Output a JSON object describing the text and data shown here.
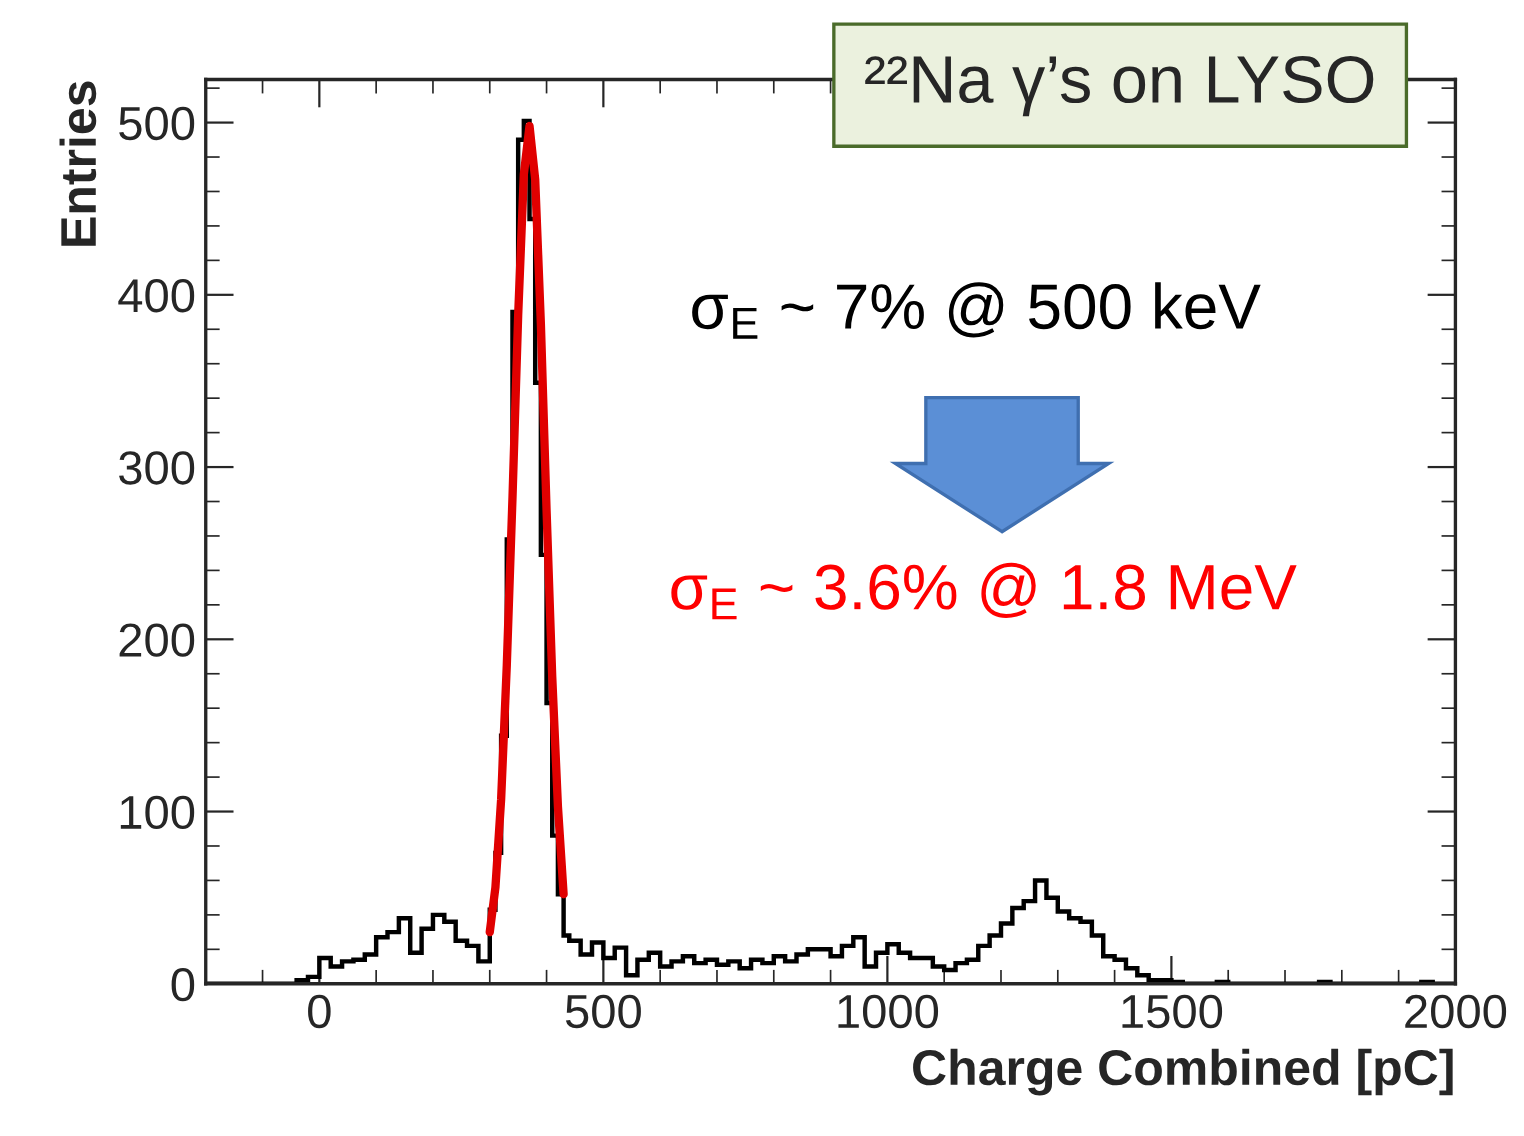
{
  "chart_data": {
    "type": "histogram",
    "title": "²²Na γ’s on LYSO",
    "xlabel": "Charge Combined [pC]",
    "ylabel": "Entries",
    "annotations": [
      "σ$_{E}$ ~ 7% @ 500 keV",
      "σ$_{E}$ ~ 3.6% @ 1.8 MeV"
    ],
    "bins": [
      -200,
      -180,
      -160,
      -140,
      -120,
      -100,
      -80,
      -60,
      -40,
      -20,
      0,
      20,
      40,
      60,
      80,
      100,
      120,
      140,
      160,
      180,
      200,
      220,
      240,
      260,
      280,
      300,
      310,
      320,
      330,
      340,
      350,
      360,
      370,
      380,
      390,
      400,
      410,
      420,
      430,
      440,
      460,
      480,
      500,
      520,
      540,
      560,
      580,
      600,
      620,
      640,
      660,
      680,
      700,
      720,
      740,
      760,
      780,
      800,
      820,
      840,
      860,
      880,
      900,
      920,
      940,
      960,
      980,
      1000,
      1020,
      1040,
      1060,
      1080,
      1100,
      1120,
      1140,
      1160,
      1180,
      1200,
      1220,
      1240,
      1260,
      1280,
      1300,
      1320,
      1340,
      1360,
      1380,
      1400,
      1420,
      1440,
      1460,
      1480,
      1500,
      1520,
      1540,
      1560,
      1580,
      1600,
      1620,
      1640,
      1660,
      1680,
      1700,
      1720,
      1740,
      1760,
      1780,
      1800,
      1820,
      1840,
      1860,
      1880,
      1900,
      1920,
      1940,
      1960,
      1980,
      2000
    ],
    "values": [
      0,
      0,
      0,
      0,
      0,
      0,
      0,
      0,
      2,
      4,
      15,
      10,
      13,
      14,
      17,
      27,
      30,
      38,
      18,
      32,
      40,
      36,
      25,
      22,
      13,
      43,
      76,
      144,
      258,
      390,
      490,
      501,
      444,
      349,
      249,
      163,
      86,
      52,
      28,
      25,
      17,
      24,
      15,
      21,
      5,
      14,
      18,
      10,
      13,
      16,
      12,
      14,
      11,
      13,
      9,
      14,
      12,
      16,
      13,
      17,
      20,
      20,
      16,
      22,
      27,
      10,
      18,
      23,
      18,
      15,
      15,
      10,
      8,
      12,
      14,
      22,
      28,
      35,
      44,
      48,
      60,
      50,
      42,
      38,
      36,
      28,
      16,
      14,
      9,
      5,
      2,
      2,
      1,
      0,
      0,
      0,
      1,
      0,
      0,
      0,
      0,
      0,
      0,
      0,
      0,
      1,
      0,
      0,
      0,
      0,
      0,
      0,
      0,
      0,
      1,
      0,
      0
    ],
    "color": "#000000",
    "series": [
      {
        "type": "line",
        "color": "#e00000",
        "x": [
          300,
          310,
          320,
          330,
          340,
          350,
          360,
          370,
          380,
          390,
          400,
          410,
          420,
          430
        ],
        "values": [
          30,
          56,
          107,
          185,
          282,
          388,
          470,
          498,
          467,
          383,
          275,
          178,
          103,
          52
        ]
      }
    ],
    "xlim": [
      -200,
      2000
    ],
    "ylim": [
      0,
      525
    ],
    "xticks": [
      0,
      500,
      1000,
      1500,
      2000
    ],
    "yticks": [
      0,
      100,
      200,
      300,
      400,
      500
    ],
    "grid": false,
    "legend": false
  }
}
